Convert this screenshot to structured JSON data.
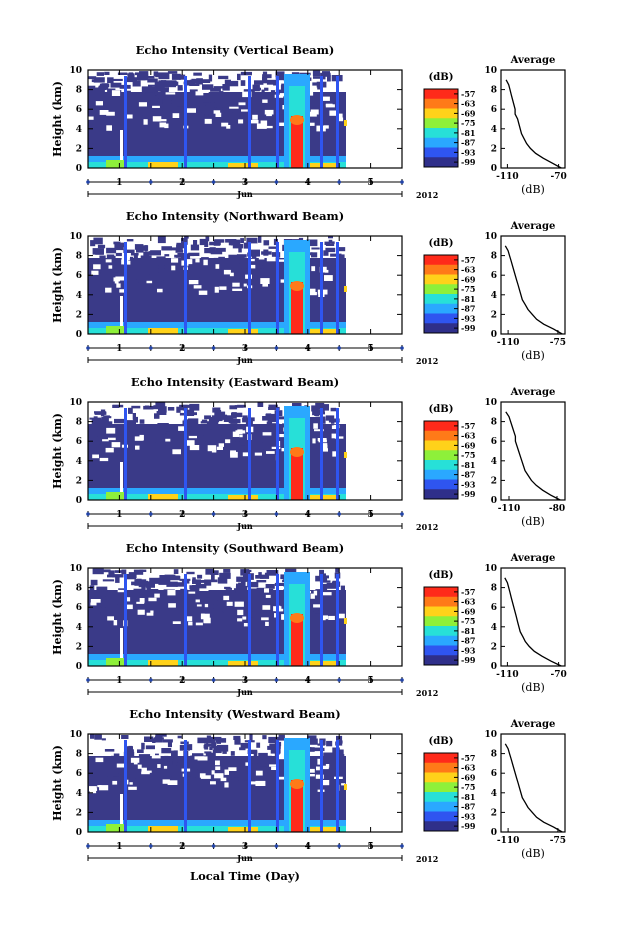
{
  "xlabel": "Local Time (Day)",
  "month_label": "Jun",
  "year_label": "2012",
  "colorbar": {
    "unit": "(dB)",
    "ticks": [
      "-57",
      "-63",
      "-69",
      "-75",
      "-81",
      "-87",
      "-93",
      "-99"
    ],
    "colors": [
      "#ff2a1a",
      "#ff7a18",
      "#ffd21a",
      "#8ef03a",
      "#27e0d8",
      "#2aa8ff",
      "#2f55f0",
      "#2f2f8a"
    ]
  },
  "avg_title": "Average",
  "avg_xlabel": "(dB)",
  "chart_data": [
    {
      "type": "heatmap",
      "title": "Echo Intensity (Vertical Beam)",
      "ylabel": "Height (km)",
      "yticks": [
        "0",
        "2",
        "4",
        "6",
        "8",
        "10"
      ],
      "ylim": [
        0,
        10
      ],
      "xticks": [
        "1",
        "2",
        "3",
        "4",
        "5"
      ],
      "xlim": [
        0,
        10
      ],
      "average_profile": {
        "xticks": [
          "-110",
          "-70"
        ],
        "yticks": [
          "0",
          "2",
          "4",
          "6",
          "8",
          "10"
        ],
        "xlim": [
          -115,
          -65
        ],
        "height": [
          0,
          0.5,
          1,
          1.5,
          2,
          2.5,
          3,
          3.5,
          4,
          4.5,
          5,
          5.5,
          6,
          6.5,
          7,
          7.5,
          8,
          8.5,
          9
        ],
        "value": [
          -68,
          -75,
          -82,
          -88,
          -92,
          -95,
          -97,
          -99,
          -100,
          -101,
          -102,
          -104,
          -104,
          -105,
          -106,
          -107,
          -108,
          -109,
          -111
        ]
      }
    },
    {
      "type": "heatmap",
      "title": "Echo Intensity (Northward Beam)",
      "ylabel": "Height (km)",
      "yticks": [
        "0",
        "2",
        "4",
        "6",
        "8",
        "10"
      ],
      "ylim": [
        0,
        10
      ],
      "xticks": [
        "1",
        "2",
        "3",
        "4",
        "5"
      ],
      "xlim": [
        0,
        10
      ],
      "average_profile": {
        "xticks": [
          "-110",
          "-75"
        ],
        "yticks": [
          "0",
          "2",
          "4",
          "6",
          "8",
          "10"
        ],
        "xlim": [
          -115,
          -70
        ],
        "height": [
          0,
          0.5,
          1,
          1.5,
          2,
          2.5,
          3,
          3.5,
          4,
          4.5,
          5,
          5.5,
          6,
          6.5,
          7,
          7.5,
          8,
          8.5,
          9
        ],
        "value": [
          -72,
          -78,
          -85,
          -90,
          -93,
          -96,
          -98,
          -100,
          -101,
          -102,
          -103,
          -104,
          -105,
          -106,
          -107,
          -108,
          -109,
          -110,
          -112
        ]
      }
    },
    {
      "type": "heatmap",
      "title": "Echo Intensity (Eastward Beam)",
      "ylabel": "Height (km)",
      "yticks": [
        "0",
        "2",
        "4",
        "6",
        "8",
        "10"
      ],
      "ylim": [
        0,
        10
      ],
      "xticks": [
        "1",
        "2",
        "3",
        "4",
        "5"
      ],
      "xlim": [
        0,
        10
      ],
      "average_profile": {
        "xticks": [
          "-110",
          "-80"
        ],
        "yticks": [
          "0",
          "2",
          "4",
          "6",
          "8",
          "10"
        ],
        "xlim": [
          -115,
          -75
        ],
        "height": [
          0,
          0.5,
          1,
          1.5,
          2,
          2.5,
          3,
          3.5,
          4,
          4.5,
          5,
          5.5,
          6,
          6.5,
          7,
          7.5,
          8,
          8.5,
          9
        ],
        "value": [
          -78,
          -84,
          -89,
          -93,
          -96,
          -98,
          -100,
          -101,
          -102,
          -103,
          -104,
          -105,
          -106,
          -106,
          -107,
          -108,
          -109,
          -110,
          -112
        ]
      }
    },
    {
      "type": "heatmap",
      "title": "Echo Intensity (Southward Beam)",
      "ylabel": "Height (km)",
      "yticks": [
        "0",
        "2",
        "4",
        "6",
        "8",
        "10"
      ],
      "ylim": [
        0,
        10
      ],
      "xticks": [
        "1",
        "2",
        "3",
        "4",
        "5"
      ],
      "xlim": [
        0,
        10
      ],
      "average_profile": {
        "xticks": [
          "-110",
          "-70"
        ],
        "yticks": [
          "0",
          "2",
          "4",
          "6",
          "8",
          "10"
        ],
        "xlim": [
          -115,
          -65
        ],
        "height": [
          0,
          0.5,
          1,
          1.5,
          2,
          2.5,
          3,
          3.5,
          4,
          4.5,
          5,
          5.5,
          6,
          6.5,
          7,
          7.5,
          8,
          8.5,
          9
        ],
        "value": [
          -68,
          -76,
          -83,
          -89,
          -93,
          -96,
          -98,
          -100,
          -101,
          -102,
          -103,
          -104,
          -105,
          -106,
          -107,
          -108,
          -109,
          -110,
          -112
        ]
      }
    },
    {
      "type": "heatmap",
      "title": "Echo Intensity (Westward Beam)",
      "ylabel": "Height (km)",
      "yticks": [
        "0",
        "2",
        "4",
        "6",
        "8",
        "10"
      ],
      "ylim": [
        0,
        10
      ],
      "xticks": [
        "1",
        "2",
        "3",
        "4",
        "5"
      ],
      "xlim": [
        0,
        10
      ],
      "average_profile": {
        "xticks": [
          "-110",
          "-75"
        ],
        "yticks": [
          "0",
          "2",
          "4",
          "6",
          "8",
          "10"
        ],
        "xlim": [
          -115,
          -70
        ],
        "height": [
          0,
          0.5,
          1,
          1.5,
          2,
          2.5,
          3,
          3.5,
          4,
          4.5,
          5,
          5.5,
          6,
          6.5,
          7,
          7.5,
          8,
          8.5,
          9
        ],
        "value": [
          -72,
          -78,
          -85,
          -90,
          -93,
          -96,
          -98,
          -100,
          -101,
          -102,
          -103,
          -104,
          -105,
          -106,
          -107,
          -108,
          -109,
          -110,
          -112
        ]
      }
    }
  ]
}
